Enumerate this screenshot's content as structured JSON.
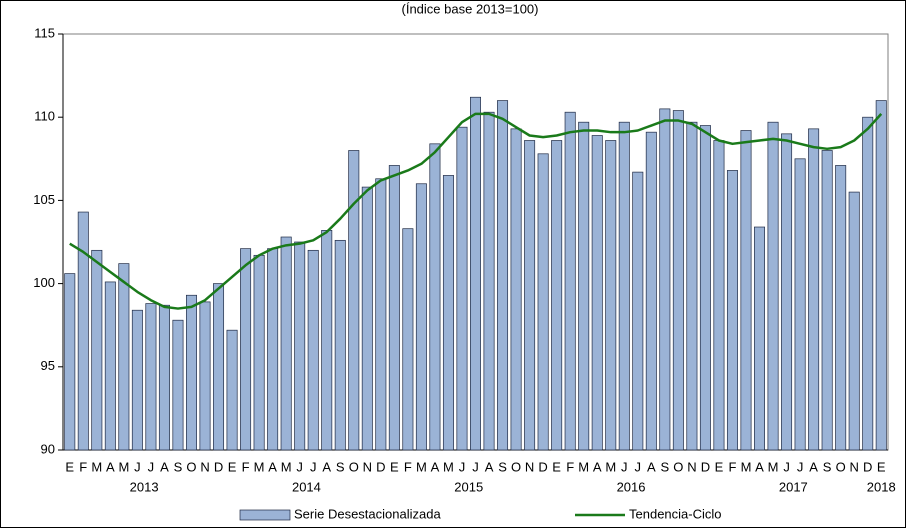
{
  "chart_data": {
    "type": "bar_line",
    "subtitle": "(Índice base 2013=100)",
    "categories": [
      "E",
      "F",
      "M",
      "A",
      "M",
      "J",
      "J",
      "A",
      "S",
      "O",
      "N",
      "D",
      "E",
      "F",
      "M",
      "A",
      "M",
      "J",
      "J",
      "A",
      "S",
      "O",
      "N",
      "D",
      "E",
      "F",
      "M",
      "A",
      "M",
      "J",
      "J",
      "A",
      "S",
      "O",
      "N",
      "D",
      "E",
      "F",
      "M",
      "A",
      "M",
      "J",
      "J",
      "A",
      "S",
      "O",
      "N",
      "D",
      "E",
      "F",
      "M",
      "A",
      "M",
      "J",
      "J",
      "A",
      "S",
      "O",
      "N",
      "D",
      "E"
    ],
    "years": [
      "2013",
      "2014",
      "2015",
      "2016",
      "2017",
      "2018"
    ],
    "series": [
      {
        "name": "Serie Desestacionalizada",
        "type": "bar",
        "color": "#9bb3d6",
        "values": [
          100.6,
          104.3,
          102.0,
          100.1,
          101.2,
          98.4,
          98.8,
          98.7,
          97.8,
          99.3,
          98.9,
          100.0,
          97.2,
          102.1,
          101.7,
          102.1,
          102.8,
          102.5,
          102.0,
          103.2,
          102.6,
          108.0,
          105.8,
          106.3,
          107.1,
          103.3,
          106.0,
          108.4,
          106.5,
          109.4,
          111.2,
          110.3,
          111.0,
          109.3,
          108.6,
          107.8,
          108.6,
          110.3,
          109.7,
          108.9,
          108.6,
          109.7,
          106.7,
          109.1,
          110.5,
          110.4,
          109.7,
          109.5,
          108.6,
          106.8,
          109.2,
          103.4,
          109.7,
          109.0,
          107.5,
          109.3,
          108.0,
          107.1,
          105.5,
          110.0,
          111.0
        ]
      },
      {
        "name": "Tendencia-Ciclo",
        "type": "line",
        "color": "#1a7a1a",
        "values": [
          102.4,
          101.9,
          101.3,
          100.7,
          100.1,
          99.5,
          99.0,
          98.6,
          98.5,
          98.6,
          99.0,
          99.7,
          100.4,
          101.1,
          101.7,
          102.1,
          102.3,
          102.4,
          102.6,
          103.1,
          103.9,
          104.8,
          105.6,
          106.2,
          106.5,
          106.8,
          107.2,
          107.9,
          108.8,
          109.7,
          110.2,
          110.2,
          109.9,
          109.4,
          108.9,
          108.8,
          108.9,
          109.1,
          109.2,
          109.2,
          109.1,
          109.1,
          109.2,
          109.5,
          109.8,
          109.8,
          109.6,
          109.1,
          108.6,
          108.4,
          108.5,
          108.6,
          108.7,
          108.6,
          108.4,
          108.2,
          108.1,
          108.2,
          108.6,
          109.3,
          110.2
        ]
      }
    ],
    "ylim": [
      90,
      115
    ],
    "yticks": [
      90,
      95,
      100,
      105,
      110,
      115
    ],
    "grid": false,
    "legend": "bottom"
  }
}
